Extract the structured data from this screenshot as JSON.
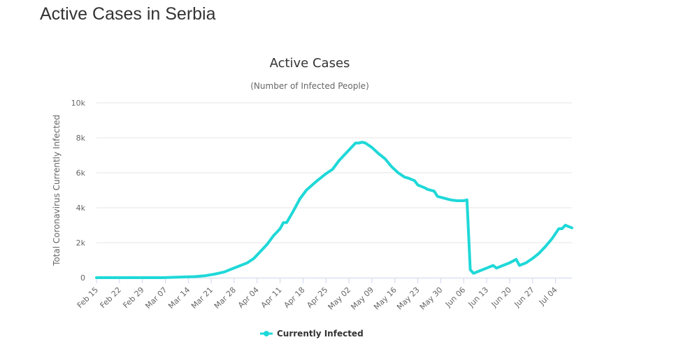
{
  "page": {
    "title": "Active Cases in Serbia"
  },
  "colors": {
    "series": "#1fd8d8",
    "grid": "#e6e6e6",
    "axis": "#ccd6eb"
  },
  "chart_data": {
    "type": "line",
    "title": "Active Cases",
    "subtitle": "(Number of Infected People)",
    "xlabel": "",
    "ylabel": "Total Coronavirus Currently Infected",
    "ylim": [
      0,
      10000
    ],
    "y_ticks": [
      0,
      2000,
      4000,
      6000,
      8000,
      10000
    ],
    "y_tick_labels": [
      "0",
      "2k",
      "4k",
      "6k",
      "8k",
      "10k"
    ],
    "x_tick_labels": [
      "Feb 15",
      "Feb 22",
      "Feb 29",
      "Mar 07",
      "Mar 14",
      "Mar 21",
      "Mar 28",
      "Apr 04",
      "Apr 11",
      "Apr 18",
      "Apr 25",
      "May 02",
      "May 09",
      "May 16",
      "May 23",
      "May 30",
      "Jun 06",
      "Jun 13",
      "Jun 20",
      "Jun 27",
      "Jul 04"
    ],
    "grid": true,
    "legend": {
      "position": "bottom-center"
    },
    "x_range": [
      "Feb 15",
      "Jul 09"
    ],
    "series": [
      {
        "name": "Currently Infected",
        "points": [
          [
            "Feb 15",
            0
          ],
          [
            "Mar 06",
            0
          ],
          [
            "Mar 11",
            30
          ],
          [
            "Mar 16",
            60
          ],
          [
            "Mar 19",
            110
          ],
          [
            "Mar 22",
            200
          ],
          [
            "Mar 25",
            330
          ],
          [
            "Mar 27",
            480
          ],
          [
            "Mar 30",
            700
          ],
          [
            "Apr 01",
            850
          ],
          [
            "Apr 03",
            1100
          ],
          [
            "Apr 05",
            1500
          ],
          [
            "Apr 07",
            1900
          ],
          [
            "Apr 09",
            2400
          ],
          [
            "Apr 11",
            2800
          ],
          [
            "Apr 12",
            3150
          ],
          [
            "Apr 13",
            3150
          ],
          [
            "Apr 15",
            3800
          ],
          [
            "Apr 17",
            4500
          ],
          [
            "Apr 19",
            5000
          ],
          [
            "Apr 22",
            5500
          ],
          [
            "Apr 25",
            5950
          ],
          [
            "Apr 27",
            6200
          ],
          [
            "Apr 29",
            6700
          ],
          [
            "May 01",
            7100
          ],
          [
            "May 03",
            7500
          ],
          [
            "May 04",
            7700
          ],
          [
            "May 05",
            7700
          ],
          [
            "May 06",
            7750
          ],
          [
            "May 07",
            7700
          ],
          [
            "May 09",
            7450
          ],
          [
            "May 11",
            7100
          ],
          [
            "May 13",
            6800
          ],
          [
            "May 15",
            6350
          ],
          [
            "May 17",
            6000
          ],
          [
            "May 19",
            5750
          ],
          [
            "May 20",
            5700
          ],
          [
            "May 22",
            5550
          ],
          [
            "May 23",
            5300
          ],
          [
            "May 25",
            5150
          ],
          [
            "May 26",
            5050
          ],
          [
            "May 28",
            4950
          ],
          [
            "May 29",
            4650
          ],
          [
            "May 31",
            4550
          ],
          [
            "Jun 02",
            4450
          ],
          [
            "Jun 04",
            4400
          ],
          [
            "Jun 06",
            4400
          ],
          [
            "Jun 07",
            4450
          ],
          [
            "Jun 08",
            450
          ],
          [
            "Jun 09",
            250
          ],
          [
            "Jun 11",
            400
          ],
          [
            "Jun 13",
            550
          ],
          [
            "Jun 15",
            700
          ],
          [
            "Jun 16",
            550
          ],
          [
            "Jun 18",
            700
          ],
          [
            "Jun 20",
            850
          ],
          [
            "Jun 22",
            1050
          ],
          [
            "Jun 23",
            700
          ],
          [
            "Jun 25",
            850
          ],
          [
            "Jun 27",
            1100
          ],
          [
            "Jun 29",
            1400
          ],
          [
            "Jul 01",
            1800
          ],
          [
            "Jul 03",
            2250
          ],
          [
            "Jul 05",
            2800
          ],
          [
            "Jul 06",
            2800
          ],
          [
            "Jul 07",
            3000
          ],
          [
            "Jul 09",
            2850
          ]
        ]
      }
    ]
  }
}
